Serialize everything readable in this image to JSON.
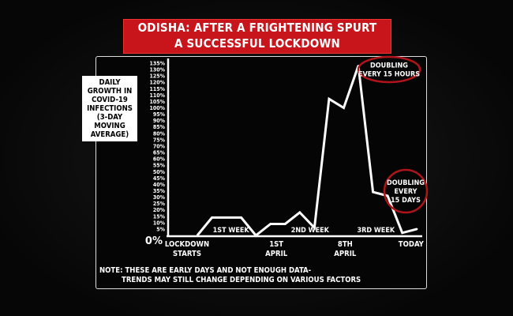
{
  "title": {
    "line1": "ODISHA: AFTER A FRIGHTENING SPURT",
    "line2": "A SUCCESSFUL LOCKDOWN"
  },
  "note": {
    "line1": "NOTE: THESE ARE EARLY DAYS AND NOT ENOUGH DATA-",
    "line2": "TRENDS MAY STILL CHANGE DEPENDING ON VARIOUS FACTORS"
  },
  "colors": {
    "banner": "#c8141b",
    "line": "#ffffff",
    "annotation_ring": "#b0141b",
    "background": "#050505"
  },
  "chart_data": {
    "type": "line",
    "ylabel": "DAILY GROWTH IN COVID-19 INFECTIONS (3-DAY MOVING AVERAGE)",
    "ylim": [
      0,
      135
    ],
    "yticks": [
      "5%",
      "10%",
      "15%",
      "20%",
      "25%",
      "30%",
      "35%",
      "40%",
      "45%",
      "50%",
      "55%",
      "60%",
      "65%",
      "70%",
      "75%",
      "80%",
      "85%",
      "90%",
      "95%",
      "100%",
      "105%",
      "110%",
      "115%",
      "120%",
      "125%",
      "130%",
      "135%"
    ],
    "y_zero_label": "0%",
    "x_labels": [
      {
        "line1": "LOCKDOWN",
        "line2": "STARTS",
        "at": -0.7
      },
      {
        "line1": "1ST",
        "line2": "APRIL",
        "at": 5.4
      },
      {
        "line1": "8TH",
        "line2": "APRIL",
        "at": 10.1
      },
      {
        "line1": "TODAY",
        "line2": "",
        "at": 14.6
      }
    ],
    "week_labels": [
      {
        "text": "1ST WEEK",
        "at": 2.3
      },
      {
        "text": "2ND WEEK",
        "at": 7.7
      },
      {
        "text": "3RD WEEK",
        "at": 12.2
      }
    ],
    "x": [
      0,
      1,
      2,
      3,
      4,
      5,
      6,
      7,
      8,
      9,
      10,
      11,
      12,
      13,
      14,
      15
    ],
    "values": [
      0,
      14,
      14,
      14,
      0,
      9,
      9,
      18,
      6,
      107,
      100,
      133,
      34,
      31,
      2,
      5
    ],
    "annotations": [
      {
        "lines": [
          "DOUBLING",
          "EVERY 15 HOURS"
        ],
        "near": "peak"
      },
      {
        "lines": [
          "DOUBLING",
          "EVERY",
          "15 DAYS"
        ],
        "near": "today"
      }
    ],
    "grid": false
  }
}
